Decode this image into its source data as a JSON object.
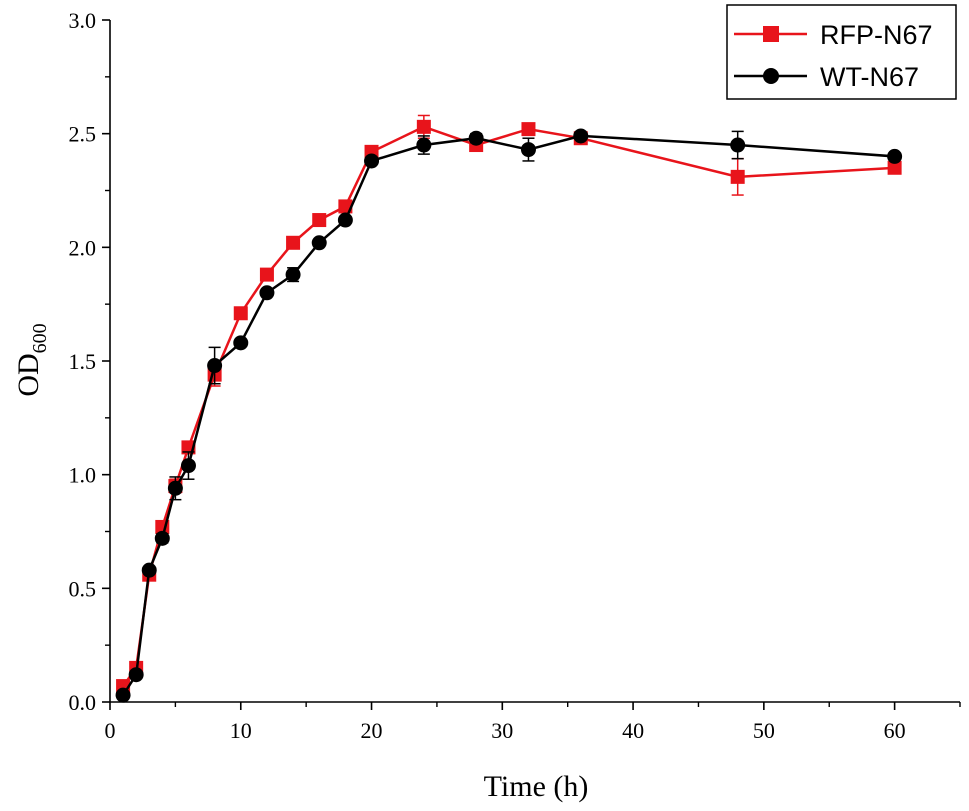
{
  "chart_data": {
    "type": "line",
    "xlabel": "Time (h)",
    "ylabel": {
      "base": "OD",
      "subscript": "600"
    },
    "xlim": [
      0,
      65
    ],
    "ylim": [
      0,
      3.0
    ],
    "xticks": [
      "0",
      "10",
      "20",
      "30",
      "40",
      "50",
      "60"
    ],
    "yticks": [
      "0.0",
      "0.5",
      "1.0",
      "1.5",
      "2.0",
      "2.5",
      "3.0"
    ],
    "legend": {
      "position": "top-right"
    },
    "series": [
      {
        "name": "RFP-N67",
        "color": "#e8141b",
        "marker": "square",
        "x": [
          1,
          2,
          3,
          4,
          5,
          6,
          8,
          10,
          12,
          14,
          16,
          18,
          20,
          24,
          28,
          32,
          36,
          48,
          60
        ],
        "y": [
          0.07,
          0.15,
          0.56,
          0.77,
          0.95,
          1.12,
          1.44,
          1.71,
          1.88,
          2.02,
          2.12,
          2.18,
          2.42,
          2.53,
          2.45,
          2.52,
          2.48,
          2.31,
          2.35
        ],
        "err": [
          0,
          0,
          0,
          0,
          0.03,
          0,
          0.05,
          0,
          0,
          0,
          0,
          0,
          0,
          0.05,
          0,
          0,
          0,
          0.08,
          0
        ]
      },
      {
        "name": "WT-N67",
        "color": "#000000",
        "marker": "circle",
        "x": [
          1,
          2,
          3,
          4,
          5,
          6,
          8,
          10,
          12,
          14,
          16,
          18,
          20,
          24,
          28,
          32,
          36,
          48,
          60
        ],
        "y": [
          0.03,
          0.12,
          0.58,
          0.72,
          0.94,
          1.04,
          1.48,
          1.58,
          1.8,
          1.88,
          2.02,
          2.12,
          2.38,
          2.45,
          2.48,
          2.43,
          2.49,
          2.45,
          2.4
        ],
        "err": [
          0,
          0,
          0,
          0.02,
          0.05,
          0.06,
          0.08,
          0,
          0,
          0.03,
          0,
          0,
          0,
          0.04,
          0.02,
          0.05,
          0,
          0.06,
          0
        ]
      }
    ]
  }
}
